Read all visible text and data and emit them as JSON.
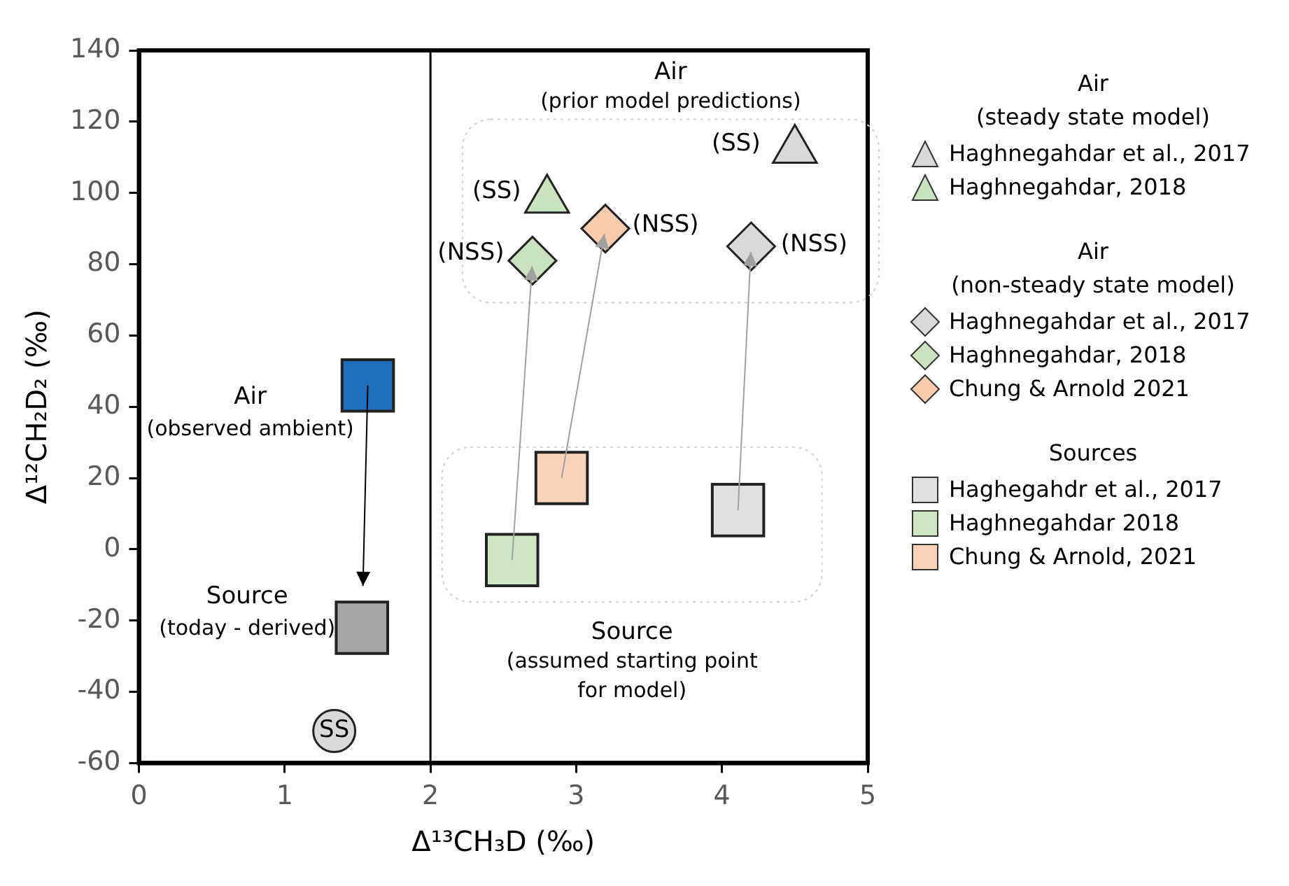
{
  "chart_data": {
    "type": "scatter",
    "xlabel": "Δ¹³CH₃D (‰)",
    "ylabel": "Δ¹²CH₂D₂ (‰)",
    "xlim": [
      0,
      5
    ],
    "xticks": [
      0,
      1,
      2,
      3,
      4,
      5
    ],
    "ylim": [
      -60,
      140
    ],
    "yticks": [
      -60,
      -40,
      -20,
      0,
      20,
      40,
      60,
      80,
      100,
      120,
      140
    ],
    "grid": false,
    "legend": "right",
    "series": [
      {
        "name": "Haghnegahdar et al., 2017",
        "marker": "triangle",
        "color": "#d9d9d9",
        "x": [
          4.5
        ],
        "values": [
          112
        ]
      },
      {
        "name": "Haghnegahdar, 2018",
        "marker": "triangle",
        "color": "#c9e3bf",
        "x": [
          2.8
        ],
        "values": [
          98
        ]
      },
      {
        "name": "Haghnegahdar et al., 2017",
        "marker": "diamond",
        "color": "#d9d9d9",
        "x": [
          4.2
        ],
        "values": [
          85
        ]
      },
      {
        "name": "Haghnegahdar, 2018",
        "marker": "diamond",
        "color": "#c9e3bf",
        "x": [
          2.7
        ],
        "values": [
          81
        ]
      },
      {
        "name": "Chung & Arnold 2021",
        "marker": "diamond",
        "color": "#f8cbad",
        "x": [
          3.2
        ],
        "values": [
          90
        ]
      },
      {
        "name": "Haghegahdr et al., 2017",
        "marker": "square",
        "color": "#e0e0e0",
        "x": [
          4.11
        ],
        "values": [
          11
        ]
      },
      {
        "name": "Haghnegahdar 2018",
        "marker": "square",
        "color": "#cfe6c4",
        "x": [
          2.56
        ],
        "values": [
          -3
        ]
      },
      {
        "name": "Chung & Arnold, 2021",
        "marker": "square",
        "color": "#f8d3b8",
        "x": [
          2.9
        ],
        "values": [
          20
        ]
      },
      {
        "marker": "square",
        "color": "#1f6fbf",
        "x": [
          1.57
        ],
        "values": [
          46
        ]
      },
      {
        "marker": "square",
        "color": "#a6a6a6",
        "x": [
          1.53
        ],
        "values": [
          -22
        ]
      },
      {
        "marker": "circle",
        "color": "#d9d9d9",
        "x": [
          1.34
        ],
        "values": [
          -51
        ]
      }
    ],
    "ref_lines": [
      {
        "axis": "x",
        "value": 2,
        "color": "#000000"
      }
    ],
    "annotations": [
      "Air\n(steady state model)",
      "Air\n(non-steady state model)",
      "Sources",
      "Air\n(prior model predictions)",
      "Source\n(assumed starting point\nfor model)",
      {
        "text": "(SS)",
        "x": 4.5,
        "y": 112
      },
      {
        "text": "(SS)",
        "x": 2.8,
        "y": 98
      },
      {
        "text": "(NSS)",
        "x": 2.7,
        "y": 81
      },
      {
        "text": "(NSS)",
        "x": 3.2,
        "y": 90
      },
      {
        "text": "(NSS)",
        "x": 4.2,
        "y": 85
      },
      {
        "text": "SS",
        "x": 1.34,
        "y": -51
      },
      {
        "text": "Air\n(observed ambient)",
        "x": 1.57,
        "y": 46
      },
      {
        "text": "Source\n(today - derived)",
        "x": 1.53,
        "y": -22
      }
    ]
  }
}
